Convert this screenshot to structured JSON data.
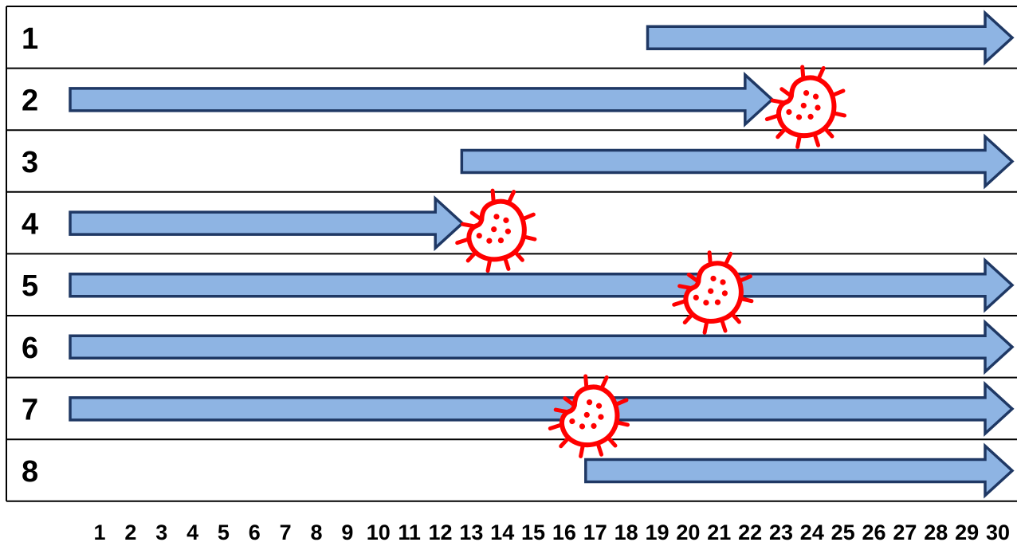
{
  "rows": [
    {
      "label": "1",
      "start_day": 19,
      "end_day": 30,
      "continues": true,
      "infection_day": null
    },
    {
      "label": "2",
      "start_day": 1,
      "end_day": 24,
      "continues": false,
      "infection_day": 24
    },
    {
      "label": "3",
      "start_day": 13,
      "end_day": 30,
      "continues": true,
      "infection_day": null
    },
    {
      "label": "4",
      "start_day": 1,
      "end_day": 14,
      "continues": false,
      "infection_day": 14
    },
    {
      "label": "5",
      "start_day": 1,
      "end_day": 30,
      "continues": true,
      "infection_day": 21
    },
    {
      "label": "6",
      "start_day": 1,
      "end_day": 30,
      "continues": true,
      "infection_day": null
    },
    {
      "label": "7",
      "start_day": 1,
      "end_day": 30,
      "continues": true,
      "infection_day": 17
    },
    {
      "label": "8",
      "start_day": 17,
      "end_day": 30,
      "continues": true,
      "infection_day": null
    }
  ],
  "days": [
    "1",
    "2",
    "3",
    "4",
    "5",
    "6",
    "7",
    "8",
    "9",
    "10",
    "11",
    "12",
    "13",
    "14",
    "15",
    "16",
    "17",
    "18",
    "19",
    "20",
    "21",
    "22",
    "23",
    "24",
    "25",
    "26",
    "27",
    "28",
    "29",
    "30"
  ],
  "colors": {
    "arrow_fill": "#8EB4E3",
    "arrow_stroke": "#1F3864",
    "germ": "#FF0000",
    "grid": "#000000",
    "text": "#000000"
  },
  "icons": {
    "germ": "bacteria-icon"
  }
}
